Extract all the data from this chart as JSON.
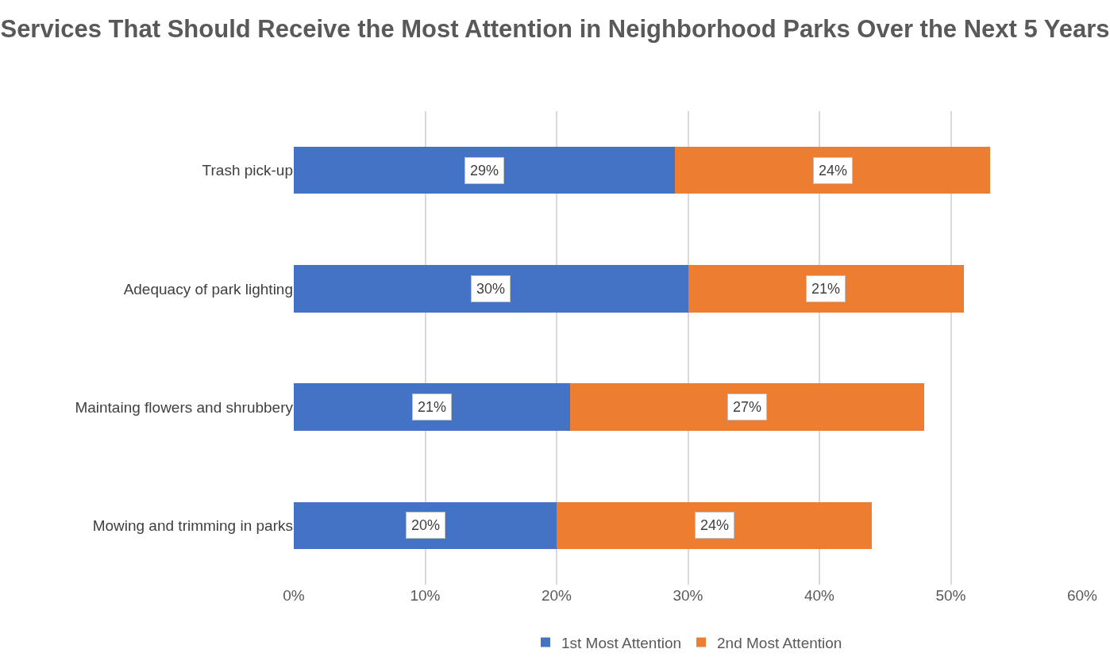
{
  "chart_data": {
    "type": "bar",
    "orientation": "horizontal",
    "stacked": true,
    "title": "Services That Should Receive the Most Attention in Neighborhood Parks Over the Next 5 Years",
    "categories": [
      "Trash pick-up",
      "Adequacy of park lighting",
      "Maintaing flowers and shrubbery",
      "Mowing and trimming in parks"
    ],
    "series": [
      {
        "name": "1st Most Attention",
        "color": "#4472c4",
        "values": [
          29,
          30,
          21,
          20
        ],
        "value_labels": [
          "29%",
          "30%",
          "21%",
          "20%"
        ]
      },
      {
        "name": "2nd Most Attention",
        "color": "#ed7d31",
        "values": [
          24,
          21,
          27,
          24
        ],
        "value_labels": [
          "24%",
          "21%",
          "27%",
          "24%"
        ]
      }
    ],
    "xlim": [
      0,
      60
    ],
    "xticks": [
      {
        "value": 0,
        "label": "0%"
      },
      {
        "value": 10,
        "label": "10%"
      },
      {
        "value": 20,
        "label": "20%"
      },
      {
        "value": 30,
        "label": "30%"
      },
      {
        "value": 40,
        "label": "40%"
      },
      {
        "value": 50,
        "label": "50%"
      },
      {
        "value": 60,
        "label": "60%"
      }
    ],
    "grid": "x",
    "legend": "bottom"
  }
}
